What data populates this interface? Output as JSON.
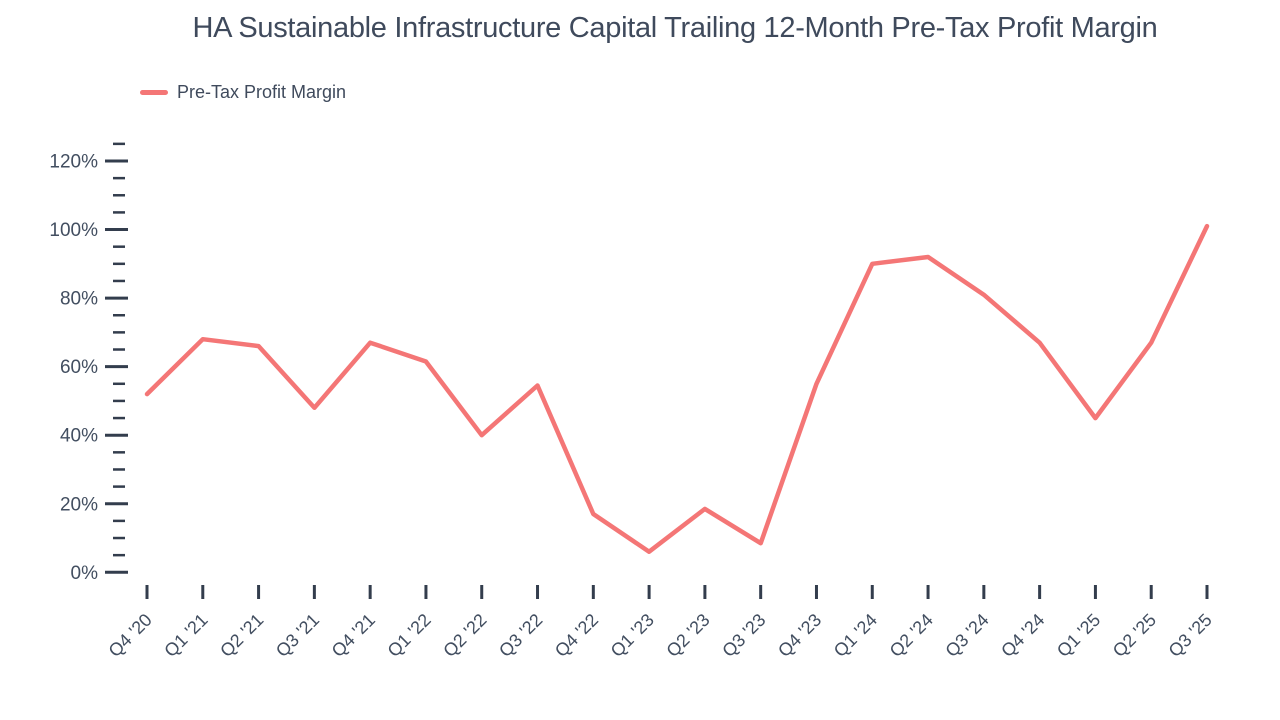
{
  "title": "HA Sustainable Infrastructure Capital Trailing 12-Month Pre-Tax Profit Margin",
  "legend": {
    "label": "Pre-Tax Profit Margin"
  },
  "colors": {
    "line": "#f47676",
    "title_text": "#3f4a5c",
    "axis_text": "#424e60",
    "tick": "#333d4d",
    "background": "#ffffff"
  },
  "chart_data": {
    "type": "line",
    "title": "HA Sustainable Infrastructure Capital Trailing 12-Month Pre-Tax Profit Margin",
    "categories": [
      "Q4 '20",
      "Q1 '21",
      "Q2 '21",
      "Q3 '21",
      "Q4 '21",
      "Q1 '22",
      "Q2 '22",
      "Q3 '22",
      "Q4 '22",
      "Q1 '23",
      "Q2 '23",
      "Q3 '23",
      "Q4 '23",
      "Q1 '24",
      "Q2 '24",
      "Q3 '24",
      "Q4 '24",
      "Q1 '25",
      "Q2 '25",
      "Q3 '25"
    ],
    "series": [
      {
        "name": "Pre-Tax Profit Margin",
        "values": [
          52,
          68,
          66,
          48,
          67,
          61.5,
          40,
          54.5,
          17,
          6,
          18.5,
          8.5,
          55,
          90,
          92,
          81,
          67,
          45,
          67,
          101
        ]
      }
    ],
    "xlabel": "",
    "ylabel": "",
    "ylim": [
      0,
      125
    ],
    "ytick_labels": [
      "0%",
      "20%",
      "40%",
      "60%",
      "80%",
      "100%",
      "120%"
    ],
    "ytick_major_step": 20,
    "ytick_minor_step": 5,
    "ytick_format": "percent",
    "grid": false,
    "legend_position": "top-left",
    "x_label_rotation": -45
  }
}
